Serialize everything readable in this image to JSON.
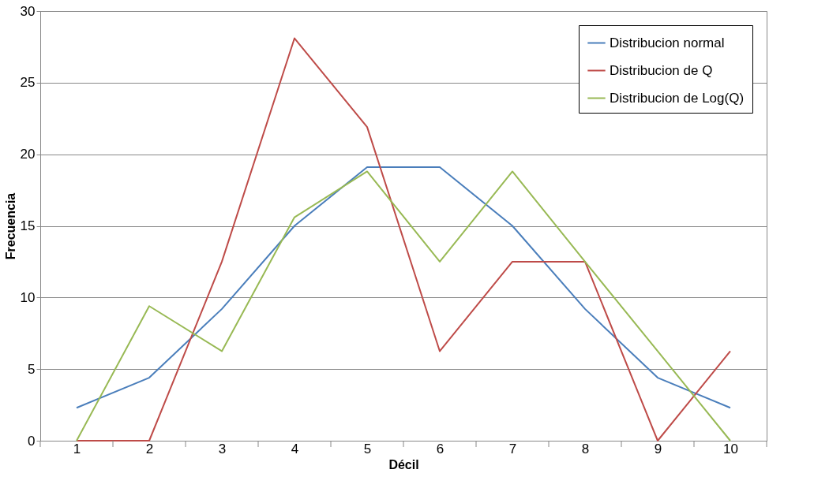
{
  "chart_data": {
    "type": "line",
    "xlabel": "Décil",
    "ylabel": "Frecuencia",
    "categories": [
      "1",
      "2",
      "3",
      "4",
      "5",
      "6",
      "7",
      "8",
      "9",
      "10"
    ],
    "series": [
      {
        "name": "Distribucion normal",
        "color": "#4a7ebb",
        "values": [
          2.3,
          4.4,
          9.2,
          15.0,
          19.1,
          19.1,
          15.0,
          9.2,
          4.4,
          2.3
        ]
      },
      {
        "name": "Distribucion de Q",
        "color": "#be4b48",
        "values": [
          0,
          0,
          12.5,
          28.1,
          21.9,
          6.25,
          12.5,
          12.5,
          0,
          6.25
        ]
      },
      {
        "name": "Distribucion de Log(Q)",
        "color": "#98b954",
        "values": [
          0,
          9.4,
          6.25,
          15.6,
          18.8,
          12.5,
          18.8,
          12.5,
          6.25,
          0
        ]
      }
    ],
    "ylim": [
      0,
      30
    ],
    "yticks": [
      0,
      5,
      10,
      15,
      20,
      25,
      30
    ],
    "grid": "y",
    "legend": "top right",
    "marker": "none",
    "line_style": "solid"
  }
}
